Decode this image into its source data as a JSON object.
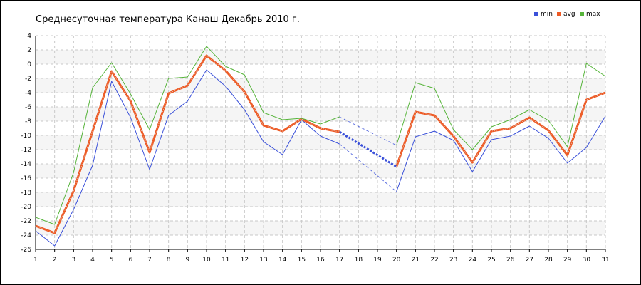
{
  "chart_data": {
    "type": "line",
    "title": "Среднесуточная температура Канаш  Декабрь 2010 г.",
    "xlabel": "",
    "ylabel": "",
    "x": [
      1,
      2,
      3,
      4,
      5,
      6,
      7,
      8,
      9,
      10,
      11,
      12,
      13,
      14,
      15,
      16,
      17,
      18,
      19,
      20,
      21,
      22,
      23,
      24,
      25,
      26,
      27,
      28,
      29,
      30,
      31
    ],
    "xlim": [
      1,
      31
    ],
    "ylim": [
      -26,
      4
    ],
    "yticks": [
      4,
      2,
      0,
      -2,
      -4,
      -6,
      -8,
      -10,
      -12,
      -14,
      -16,
      -18,
      -20,
      -22,
      -24,
      -26
    ],
    "grid": true,
    "legend_position": "top-right",
    "missing_days": [
      18,
      19
    ],
    "series": [
      {
        "name": "min",
        "color": "#3a50d9",
        "values": [
          -23.4,
          -25.5,
          -20.4,
          -14.2,
          -2.4,
          -7.5,
          -14.8,
          -7.2,
          -5.2,
          -0.8,
          -3.1,
          -6.4,
          -10.9,
          -12.7,
          -7.8,
          -10.1,
          -11.2,
          null,
          null,
          -17.9,
          -10.2,
          -9.4,
          -10.7,
          -15.1,
          -10.6,
          -10.1,
          -8.7,
          -10.4,
          -13.9,
          -11.7,
          -7.3
        ]
      },
      {
        "name": "avg",
        "color": "#ee5a24",
        "values": [
          -22.7,
          -23.7,
          -17.8,
          -9.4,
          -1.0,
          -5.2,
          -12.4,
          -4.1,
          -3.0,
          1.2,
          -0.9,
          -3.9,
          -8.6,
          -9.4,
          -7.7,
          -9.0,
          -9.5,
          null,
          null,
          -14.4,
          -6.7,
          -7.2,
          -10.1,
          -13.8,
          -9.4,
          -9.0,
          -7.5,
          -9.3,
          -12.8,
          -5.0,
          -4.0
        ]
      },
      {
        "name": "max",
        "color": "#56b43a",
        "values": [
          -21.5,
          -22.5,
          -15.2,
          -3.3,
          0.2,
          -4.2,
          -9.2,
          -2.0,
          -1.8,
          2.5,
          -0.3,
          -1.5,
          -6.8,
          -7.8,
          -7.6,
          -8.4,
          -7.4,
          null,
          null,
          -11.4,
          -2.6,
          -3.4,
          -9.2,
          -12.0,
          -8.8,
          -7.8,
          -6.4,
          -7.9,
          -11.6,
          0.1,
          -1.7
        ]
      }
    ]
  }
}
